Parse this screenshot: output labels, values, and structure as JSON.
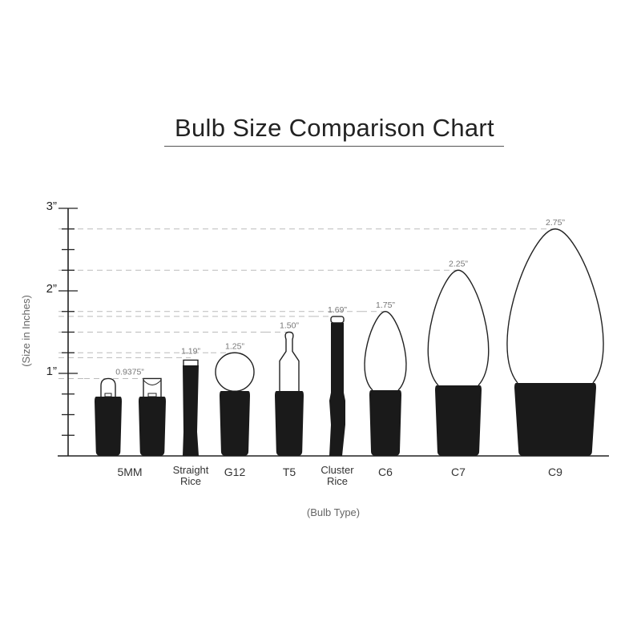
{
  "title": "Bulb Size Comparison Chart",
  "y_axis": {
    "label": "(Size in Inches)",
    "ticks": [
      "1”",
      "2”",
      "3”"
    ],
    "tick_values": [
      1,
      2,
      3
    ],
    "max": 3,
    "minor_step": 0.25
  },
  "x_axis": {
    "label": "(Bulb Type)"
  },
  "colors": {
    "base": "#1a1a1a",
    "outline": "#222222",
    "dash": "#bbbbbb",
    "value_text": "#777777"
  },
  "bulbs": [
    {
      "type": "5MM",
      "size": 0.9375,
      "size_label": "0.9375”",
      "shape": "5mm-round",
      "group": "5MM"
    },
    {
      "type": "",
      "size": 0.9375,
      "size_label": "",
      "shape": "5mm-concave",
      "group": "5MM"
    },
    {
      "type": "Straight Rice",
      "lines": [
        "Straight",
        "Rice"
      ],
      "size": 1.19,
      "size_label": "1.19”",
      "shape": "rice"
    },
    {
      "type": "G12",
      "size": 1.25,
      "size_label": "1.25”",
      "shape": "globe"
    },
    {
      "type": "T5",
      "size": 1.5,
      "size_label": "1.50”",
      "shape": "tube"
    },
    {
      "type": "Cluster Rice",
      "lines": [
        "Cluster",
        "Rice"
      ],
      "size": 1.69,
      "size_label": "1.69”",
      "shape": "cluster"
    },
    {
      "type": "C6",
      "size": 1.75,
      "size_label": "1.75”",
      "shape": "cone"
    },
    {
      "type": "C7",
      "size": 2.25,
      "size_label": "2.25”",
      "shape": "cone"
    },
    {
      "type": "C9",
      "size": 2.75,
      "size_label": "2.75”",
      "shape": "cone"
    }
  ]
}
